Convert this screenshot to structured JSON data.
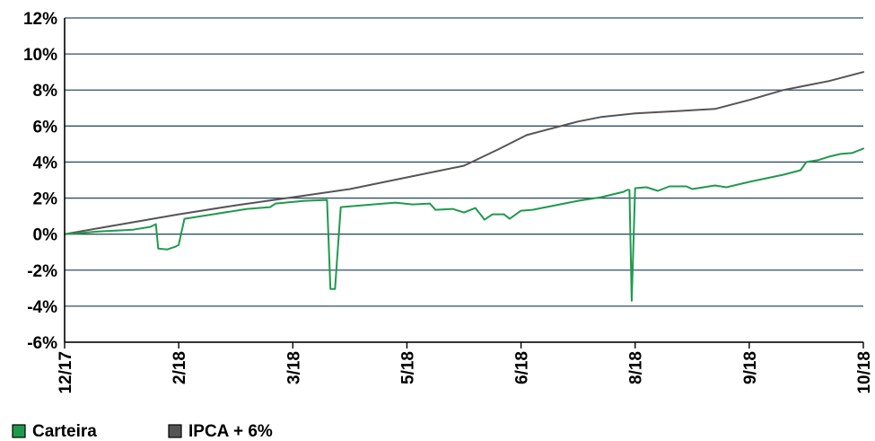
{
  "chart_data": {
    "type": "line",
    "title": "",
    "xlabel": "",
    "ylabel": "",
    "ylim": [
      -6,
      12
    ],
    "y_ticks": [
      -6,
      -4,
      -2,
      0,
      2,
      4,
      6,
      8,
      10,
      12
    ],
    "y_tick_labels": [
      "-6%",
      "-4%",
      "-2%",
      "0%",
      "2%",
      "4%",
      "6%",
      "8%",
      "10%",
      "12%"
    ],
    "x_ticks": [
      0,
      1,
      2,
      3,
      4,
      5,
      6,
      7
    ],
    "x_tick_labels": [
      "12/17",
      "2/18",
      "3/18",
      "5/18",
      "6/18",
      "8/18",
      "9/18",
      "10/18"
    ],
    "xlim": [
      0,
      7
    ],
    "grid": "horizontal",
    "legend_position": "bottom-left",
    "series": [
      {
        "name": "Carteira",
        "color": "#1f9a4d",
        "points": [
          [
            0.0,
            0.0
          ],
          [
            0.3,
            0.15
          ],
          [
            0.6,
            0.25
          ],
          [
            0.75,
            0.4
          ],
          [
            0.8,
            0.55
          ],
          [
            0.82,
            -0.8
          ],
          [
            0.9,
            -0.85
          ],
          [
            0.97,
            -0.7
          ],
          [
            1.0,
            -0.6
          ],
          [
            1.05,
            0.85
          ],
          [
            1.3,
            1.1
          ],
          [
            1.6,
            1.4
          ],
          [
            1.8,
            1.5
          ],
          [
            1.85,
            1.7
          ],
          [
            2.1,
            1.85
          ],
          [
            2.3,
            1.9
          ],
          [
            2.33,
            -3.05
          ],
          [
            2.37,
            -3.05
          ],
          [
            2.42,
            1.5
          ],
          [
            2.7,
            1.65
          ],
          [
            2.9,
            1.75
          ],
          [
            3.05,
            1.65
          ],
          [
            3.2,
            1.7
          ],
          [
            3.25,
            1.35
          ],
          [
            3.4,
            1.4
          ],
          [
            3.5,
            1.2
          ],
          [
            3.6,
            1.45
          ],
          [
            3.65,
            1.05
          ],
          [
            3.68,
            0.8
          ],
          [
            3.75,
            1.1
          ],
          [
            3.85,
            1.1
          ],
          [
            3.9,
            0.85
          ],
          [
            4.0,
            1.3
          ],
          [
            4.1,
            1.35
          ],
          [
            4.3,
            1.6
          ],
          [
            4.5,
            1.85
          ],
          [
            4.7,
            2.05
          ],
          [
            4.9,
            2.35
          ],
          [
            4.93,
            2.45
          ],
          [
            4.95,
            2.45
          ],
          [
            4.97,
            -3.7
          ],
          [
            5.0,
            2.55
          ],
          [
            5.1,
            2.6
          ],
          [
            5.2,
            2.4
          ],
          [
            5.3,
            2.65
          ],
          [
            5.45,
            2.65
          ],
          [
            5.5,
            2.5
          ],
          [
            5.6,
            2.6
          ],
          [
            5.7,
            2.7
          ],
          [
            5.8,
            2.6
          ],
          [
            5.9,
            2.75
          ],
          [
            6.0,
            2.9
          ],
          [
            6.15,
            3.1
          ],
          [
            6.3,
            3.3
          ],
          [
            6.45,
            3.55
          ],
          [
            6.5,
            4.0
          ],
          [
            6.6,
            4.1
          ],
          [
            6.7,
            4.3
          ],
          [
            6.8,
            4.45
          ],
          [
            6.9,
            4.5
          ],
          [
            7.0,
            4.75
          ]
        ]
      },
      {
        "name": "IPCA + 6%",
        "color": "#555555",
        "points": [
          [
            0.0,
            0.0
          ],
          [
            0.5,
            0.55
          ],
          [
            1.0,
            1.1
          ],
          [
            1.5,
            1.6
          ],
          [
            2.0,
            2.05
          ],
          [
            2.5,
            2.5
          ],
          [
            3.0,
            3.15
          ],
          [
            3.5,
            3.8
          ],
          [
            3.8,
            4.7
          ],
          [
            4.05,
            5.5
          ],
          [
            4.2,
            5.75
          ],
          [
            4.5,
            6.25
          ],
          [
            4.7,
            6.5
          ],
          [
            5.0,
            6.7
          ],
          [
            5.7,
            6.95
          ],
          [
            6.0,
            7.45
          ],
          [
            6.3,
            8.0
          ],
          [
            6.7,
            8.5
          ],
          [
            7.0,
            9.0
          ]
        ]
      }
    ]
  },
  "legend": {
    "items": [
      {
        "label": "Carteira",
        "color": "#1f9a4d"
      },
      {
        "label": "IPCA + 6%",
        "color": "#555555"
      }
    ]
  }
}
